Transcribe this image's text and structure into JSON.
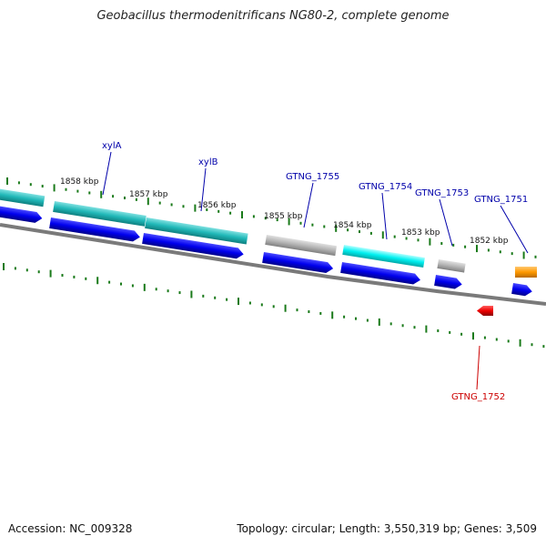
{
  "title": "Geobacillus thermodenitrificans NG80-2, complete genome",
  "footer": {
    "accession": "Accession: NC_009328",
    "summary": "Topology: circular; Length: 3,550,319 bp; Genes: 3,509"
  },
  "colors": {
    "backbone": "#808080",
    "plus_cds": "#0000ee",
    "minus_cds": "#ee0000",
    "cyan_feature": "#20b8b8",
    "bright_cyan_feature": "#00ffff",
    "gray_feature": "#b4b4b4",
    "orange_feature": "#ff9900",
    "tick": "#1a7a1a",
    "label_plus": "#0000aa",
    "label_minus": "#cc0000"
  },
  "position_labels": [
    "1858 kbp",
    "1857 kbp",
    "1856 kbp",
    "1855 kbp",
    "1854 kbp",
    "1853 kbp",
    "1852 kbp"
  ],
  "gene_labels": [
    {
      "text": "xylA",
      "strand": "plus"
    },
    {
      "text": "xylB",
      "strand": "plus"
    },
    {
      "text": "GTNG_1755",
      "strand": "plus"
    },
    {
      "text": "GTNG_1754",
      "strand": "plus"
    },
    {
      "text": "GTNG_1753",
      "strand": "plus"
    },
    {
      "text": "GTNG_1751",
      "strand": "plus"
    },
    {
      "text": "GTNG_1752",
      "strand": "minus"
    }
  ]
}
